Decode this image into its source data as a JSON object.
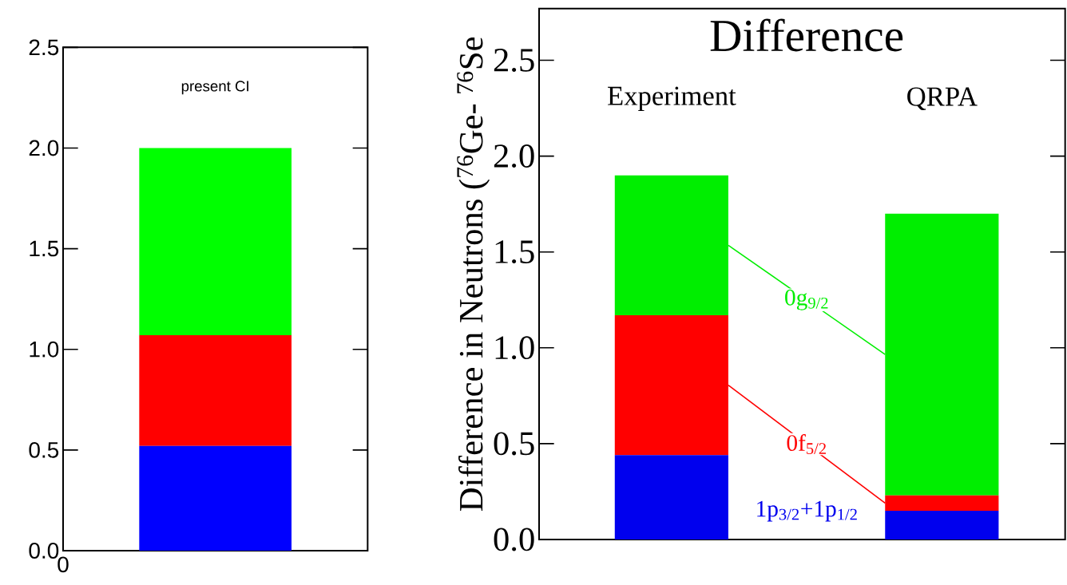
{
  "chart_data": [
    {
      "type": "bar",
      "stacked": true,
      "title": "present CI",
      "categories": [
        null
      ],
      "series": [
        {
          "color": "#0000ff",
          "values": [
            0.52
          ]
        },
        {
          "color": "#ff0000",
          "values": [
            0.55
          ]
        },
        {
          "color": "#00ff00",
          "values": [
            0.93
          ]
        }
      ],
      "ylim": [
        0,
        2.5
      ],
      "yticks": [
        {
          "value": 0,
          "label": "0.0"
        },
        0.5,
        {
          "value": 1,
          "label": "1.0"
        },
        1.5,
        {
          "value": 2,
          "label": "2.0"
        },
        2.5
      ],
      "annotations": [
        "0"
      ]
    },
    {
      "type": "bar",
      "stacked": true,
      "title": "Difference",
      "ylabel": "Difference in Neutrons  ($^{76}$Ge- $^{76}$Se",
      "categories": [
        "Experiment",
        "QRPA"
      ],
      "series": [
        {
          "name": "1p$_{3/2}$+1p$_{1/2}$",
          "color": "#0000ee",
          "values": [
            0.44,
            0.15
          ]
        },
        {
          "name": "0f$_{5/2}$",
          "color": "#ff0000",
          "values": [
            0.73,
            0.08
          ]
        },
        {
          "name": "0g$_{9/2}$",
          "color": "#00ee00",
          "values": [
            0.73,
            1.47
          ]
        }
      ],
      "ylim": [
        0,
        2.77
      ],
      "yticks": [
        {
          "value": 0,
          "label": "0.0"
        },
        0.5,
        {
          "value": 1,
          "label": "1.0"
        },
        1.5,
        {
          "value": 2,
          "label": "2.0"
        },
        2.5
      ]
    }
  ]
}
